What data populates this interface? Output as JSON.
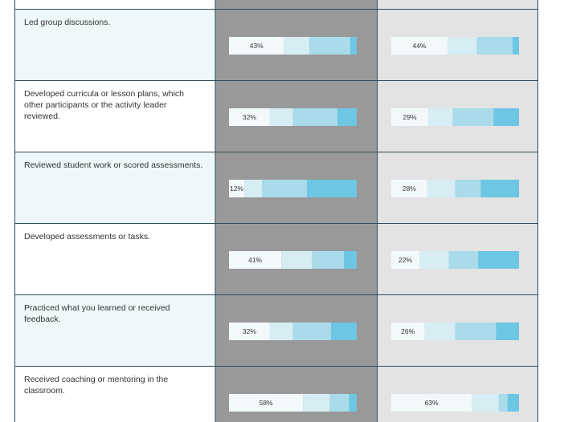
{
  "chart_data": {
    "type": "bar",
    "stacked": true,
    "orientation": "horizontal",
    "categories": [
      "Led group discussions.",
      "Developed curricula or lesson plans, which other participants or the activity leader reviewed.",
      "Reviewed student work or scored assessments.",
      "Developed assessments or tasks.",
      "Practiced what you learned or received feedback.",
      "Received coaching or mentoring in the classroom."
    ],
    "category_lines": [
      [
        "Led group discussions."
      ],
      [
        "Developed curricula or lesson plans, which",
        "other participants or the activity leader",
        "reviewed."
      ],
      [
        "Reviewed student work or scored assessments."
      ],
      [
        "Developed assessments or tasks."
      ],
      [
        "Practiced what you learned or received",
        "feedback."
      ],
      [
        "Received coaching or mentoring in the",
        "classroom."
      ]
    ],
    "segment_colors": [
      "#f3f9fb",
      "#d6edf4",
      "#a9dbea",
      "#6dc6e3"
    ],
    "xlim": [
      0,
      100
    ],
    "groups": [
      {
        "background": "#999999",
        "labels": [
          "43%",
          "32%",
          "12%",
          "41%",
          "32%",
          "58%"
        ],
        "segments": [
          [
            43,
            20,
            32,
            5
          ],
          [
            32,
            18,
            35,
            15
          ],
          [
            12,
            14,
            35,
            39
          ],
          [
            41,
            24,
            25,
            10
          ],
          [
            32,
            18,
            30,
            20
          ],
          [
            58,
            21,
            15,
            6
          ]
        ]
      },
      {
        "background": "#e3e3e3",
        "labels": [
          "44%",
          "29%",
          "28%",
          "22%",
          "26%",
          "63%"
        ],
        "segments": [
          [
            44,
            23,
            28,
            5
          ],
          [
            29,
            19,
            32,
            20
          ],
          [
            28,
            22,
            20,
            30
          ],
          [
            22,
            23,
            23,
            32
          ],
          [
            26,
            24,
            32,
            18
          ],
          [
            63,
            21,
            7,
            9
          ]
        ]
      }
    ]
  }
}
